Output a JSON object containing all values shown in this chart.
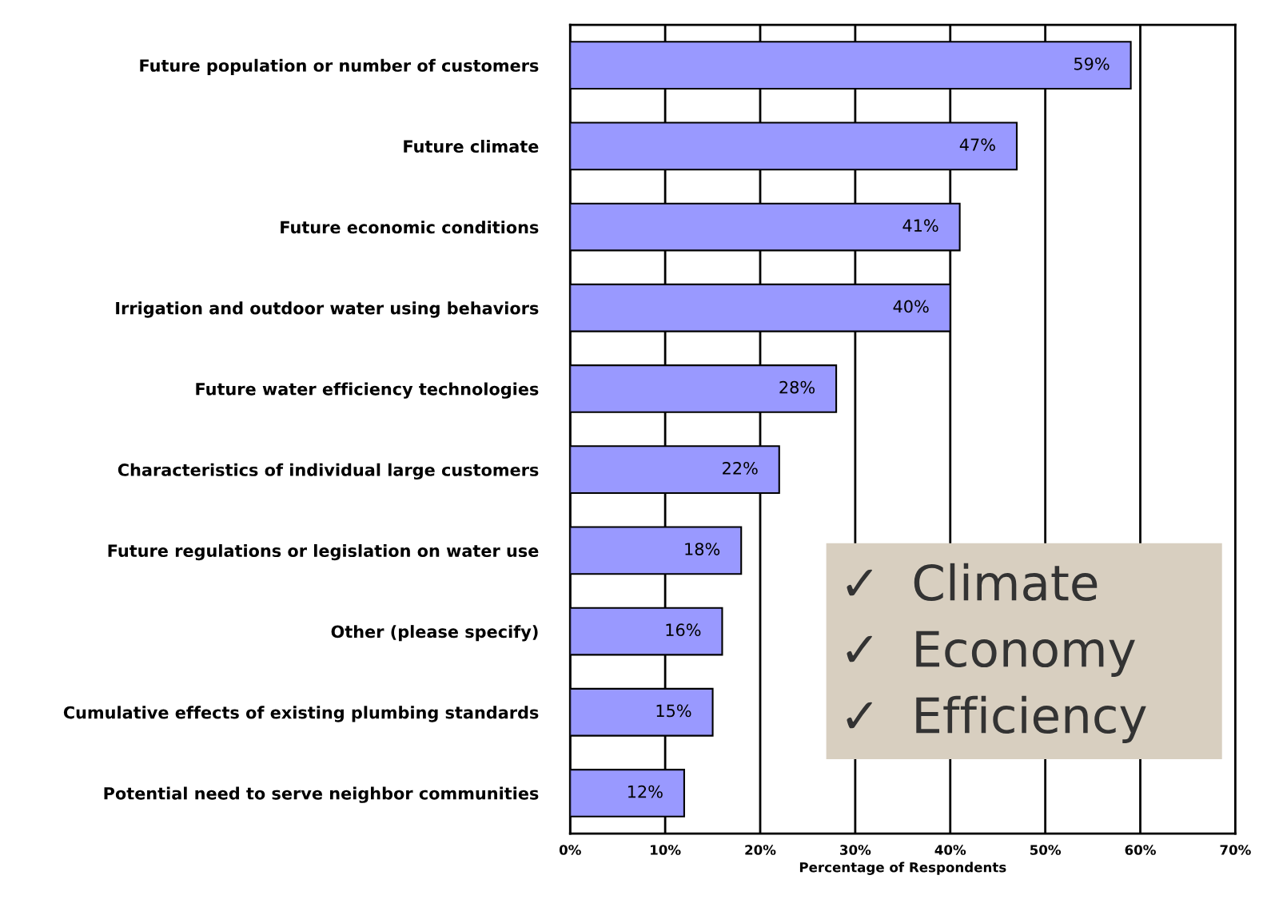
{
  "chart_data": {
    "type": "bar",
    "orientation": "horizontal",
    "categories": [
      "Future population or number of customers",
      "Future climate",
      "Future economic conditions",
      "Irrigation and outdoor water using behaviors",
      "Future water efficiency technologies",
      "Characteristics of individual large customers",
      "Future regulations or legislation on water use",
      "Other (please specify)",
      "Cumulative effects of existing plumbing standards",
      "Potential need to serve neighbor communities"
    ],
    "values": [
      59,
      47,
      41,
      40,
      28,
      22,
      18,
      16,
      15,
      12
    ],
    "value_labels": [
      "59%",
      "47%",
      "41%",
      "40%",
      "28%",
      "22%",
      "18%",
      "16%",
      "15%",
      "12%"
    ],
    "color": "#9999ff",
    "xlim": [
      0,
      70
    ],
    "xticks": [
      {
        "value": 0,
        "label": "0%"
      },
      {
        "value": 10,
        "label": "10%"
      },
      {
        "value": 20,
        "label": "20%"
      },
      {
        "value": 30,
        "label": "30%"
      },
      {
        "value": 40,
        "label": "40%"
      },
      {
        "value": 50,
        "label": "50%"
      },
      {
        "value": 60,
        "label": "60%"
      },
      {
        "value": 70,
        "label": "70%"
      }
    ],
    "xlabel": "Percentage of Respondents",
    "grid": "x",
    "annotations": [
      "✓  Climate",
      "✓  Economy",
      "✓  Efficiency"
    ]
  }
}
